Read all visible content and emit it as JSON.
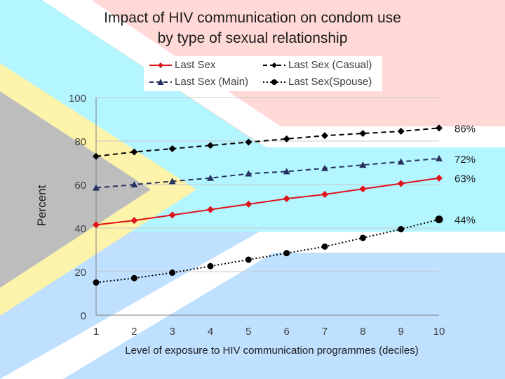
{
  "colors": {
    "pink": "#ffd9d5",
    "cyan": "#b3f6ff",
    "blue": "#bfe0ff",
    "yellow": "#fdf3aa",
    "gray": "#bdbdbd",
    "white": "#ffffff",
    "red": "#e0131b",
    "black": "#000000",
    "navy": "#253160",
    "grid": "#c8c8c8"
  },
  "chart_data": {
    "type": "line",
    "title_line1": "Impact of HIV communication on condom use",
    "title_line2": "by type of sexual relationship",
    "xlabel": "Level of exposure to HIV communication programmes (deciles)",
    "ylabel": "Percent",
    "x": [
      1,
      2,
      3,
      4,
      5,
      6,
      7,
      8,
      9,
      10
    ],
    "ylim": [
      0,
      100
    ],
    "yticks": [
      0,
      20,
      40,
      60,
      80,
      100
    ],
    "grid": true,
    "legend_position": "top",
    "series": [
      {
        "name": "Last Sex",
        "color": "#e0131b",
        "dash": "solid",
        "marker": "diamond",
        "values": [
          41.5,
          43.5,
          46,
          48.5,
          51,
          53.5,
          55.5,
          58,
          60.5,
          63
        ],
        "end_label": "63%"
      },
      {
        "name": "Last Sex (Casual)",
        "color": "#000000",
        "dash": "dashed",
        "marker": "diamond",
        "values": [
          73,
          75,
          76.5,
          78,
          79.5,
          81,
          82.5,
          83.5,
          84.5,
          86
        ],
        "end_label": "86%"
      },
      {
        "name": "Last Sex (Main)",
        "color": "#253160",
        "dash": "dashed",
        "marker": "triangle",
        "values": [
          58.5,
          60,
          61.5,
          63,
          65,
          66,
          67.5,
          69,
          70.5,
          72
        ],
        "end_label": "72%"
      },
      {
        "name": "Last Sex(Spouse)",
        "color": "#000000",
        "dash": "dotted",
        "marker": "circle",
        "values": [
          15,
          17,
          19.5,
          22.5,
          25.5,
          28.5,
          31.5,
          35.5,
          39.5,
          44
        ],
        "end_label": "44%"
      }
    ]
  }
}
